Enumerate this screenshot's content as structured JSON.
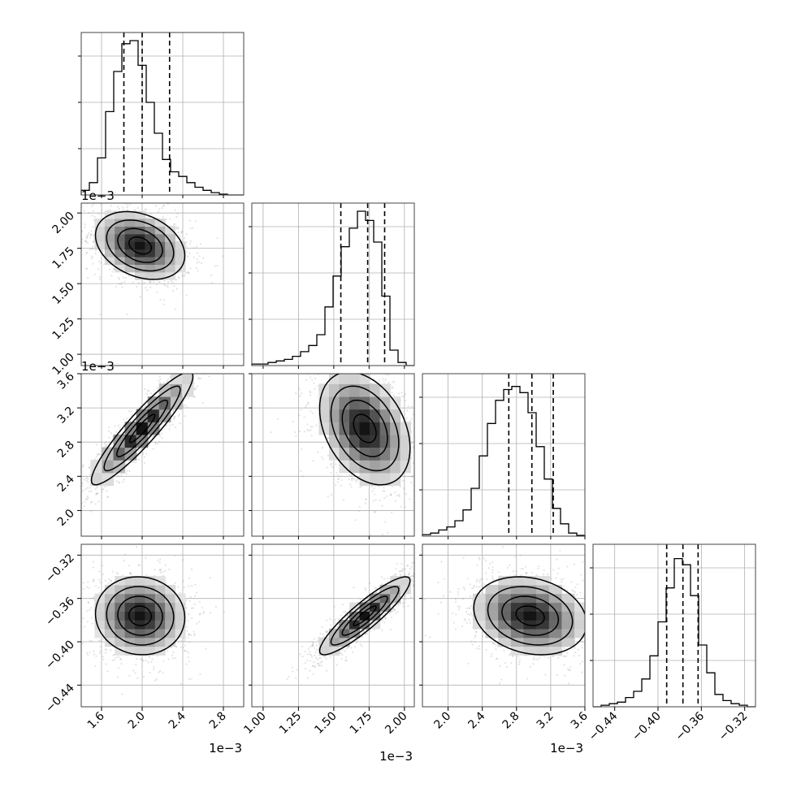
{
  "chart_data": {
    "type": "corner",
    "params": [
      {
        "ticks": [
          "1.6",
          "2.0",
          "2.4",
          "2.8"
        ],
        "tick_values": [
          1.6,
          2.0,
          2.4,
          2.8
        ],
        "range": [
          1.4,
          3.0
        ],
        "offset_label": "1e−3",
        "quantiles": [
          1.82,
          2.0,
          2.27
        ],
        "hist": [
          0.03,
          0.08,
          0.24,
          0.54,
          0.8,
          0.98,
          1.0,
          0.84,
          0.6,
          0.4,
          0.23,
          0.15,
          0.12,
          0.08,
          0.05,
          0.03,
          0.015,
          0.005,
          0,
          0
        ]
      },
      {
        "ticks": [
          "1.00",
          "1.25",
          "1.50",
          "1.75",
          "2.00"
        ],
        "tick_values": [
          1.0,
          1.25,
          1.5,
          1.75,
          2.0
        ],
        "range": [
          0.92,
          2.07
        ],
        "offset_label": "1e−3",
        "quantiles": [
          1.55,
          1.74,
          1.86
        ],
        "hist": [
          0.01,
          0.01,
          0.02,
          0.03,
          0.04,
          0.06,
          0.09,
          0.13,
          0.2,
          0.38,
          0.58,
          0.77,
          0.89,
          1.0,
          0.94,
          0.8,
          0.45,
          0.1,
          0.02,
          0
        ]
      },
      {
        "ticks": [
          "2.0",
          "2.4",
          "2.8",
          "3.2",
          "3.6"
        ],
        "tick_values": [
          2.0,
          2.4,
          2.8,
          3.2,
          3.6
        ],
        "range": [
          1.7,
          3.6
        ],
        "offset_label": "1e−3",
        "quantiles": [
          2.71,
          2.98,
          3.23
        ],
        "hist": [
          0.01,
          0.02,
          0.04,
          0.06,
          0.1,
          0.17,
          0.31,
          0.52,
          0.73,
          0.88,
          0.95,
          0.97,
          0.93,
          0.8,
          0.58,
          0.37,
          0.18,
          0.08,
          0.02,
          0.005
        ]
      },
      {
        "ticks": [
          "−0.44",
          "−0.40",
          "−0.36",
          "−0.32"
        ],
        "tick_values": [
          -0.44,
          -0.4,
          -0.36,
          -0.32
        ],
        "range": [
          -0.46,
          -0.31
        ],
        "offset_label": "",
        "quantiles": [
          -0.392,
          -0.377,
          -0.363
        ],
        "hist": [
          0,
          0.01,
          0.02,
          0.03,
          0.06,
          0.1,
          0.18,
          0.33,
          0.55,
          0.77,
          0.96,
          0.92,
          0.72,
          0.4,
          0.22,
          0.08,
          0.04,
          0.02,
          0.01,
          0
        ]
      }
    ],
    "pairs": [
      {
        "row": 1,
        "col": 0,
        "mean": [
          1.98,
          1.77
        ],
        "std": [
          0.22,
          0.12
        ],
        "rho": -0.3
      },
      {
        "row": 2,
        "col": 0,
        "mean": [
          2.0,
          2.96
        ],
        "std": [
          0.25,
          0.33
        ],
        "rho": 0.92
      },
      {
        "row": 2,
        "col": 1,
        "mean": [
          1.72,
          2.96
        ],
        "std": [
          0.16,
          0.33
        ],
        "rho": -0.35
      },
      {
        "row": 3,
        "col": 0,
        "mean": [
          1.98,
          -0.376
        ],
        "std": [
          0.22,
          0.018
        ],
        "rho": -0.05
      },
      {
        "row": 3,
        "col": 1,
        "mean": [
          1.72,
          -0.376
        ],
        "std": [
          0.16,
          0.018
        ],
        "rho": 0.9
      },
      {
        "row": 3,
        "col": 2,
        "mean": [
          2.96,
          -0.376
        ],
        "std": [
          0.33,
          0.018
        ],
        "rho": -0.2
      }
    ]
  }
}
